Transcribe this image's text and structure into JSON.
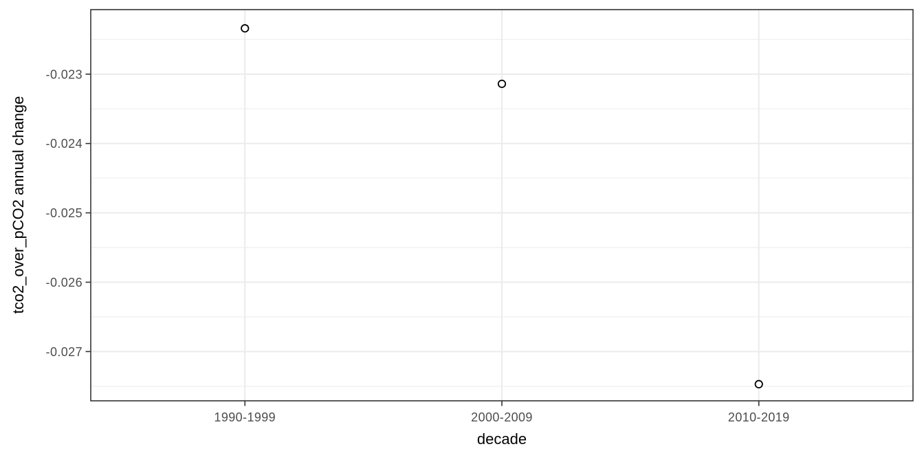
{
  "chart_data": {
    "type": "scatter",
    "title": "",
    "xlabel": "decade",
    "ylabel": "tco2_over_pCO2 annual change",
    "categories": [
      "1990-1999",
      "2000-2009",
      "2010-2019"
    ],
    "values": [
      -0.02234,
      -0.02314,
      -0.02747
    ],
    "ylim": [
      -0.02771,
      -0.02207
    ],
    "yticks": [
      {
        "value": -0.023,
        "label": "-0.023"
      },
      {
        "value": -0.024,
        "label": "-0.024"
      },
      {
        "value": -0.025,
        "label": "-0.025"
      },
      {
        "value": -0.026,
        "label": "-0.026"
      },
      {
        "value": -0.027,
        "label": "-0.027"
      }
    ],
    "yticks_minor": [
      -0.0225,
      -0.0235,
      -0.0245,
      -0.0255,
      -0.0265,
      -0.0275
    ],
    "grid": "major+minor",
    "legend_position": "none",
    "point_style": {
      "shape": "open-circle",
      "stroke": "#000000",
      "fill": "#FFFFFF",
      "radius_px": 5.2,
      "stroke_width_px": 1.8
    },
    "colors": {
      "background": "#FFFFFF",
      "panel_border": "#333333",
      "grid_major": "#EBEBEB",
      "grid_minor": "#F0F0F0",
      "tick_mark": "#333333",
      "tick_label_text": "#4D4D4D",
      "axis_title_text": "#000000"
    }
  }
}
